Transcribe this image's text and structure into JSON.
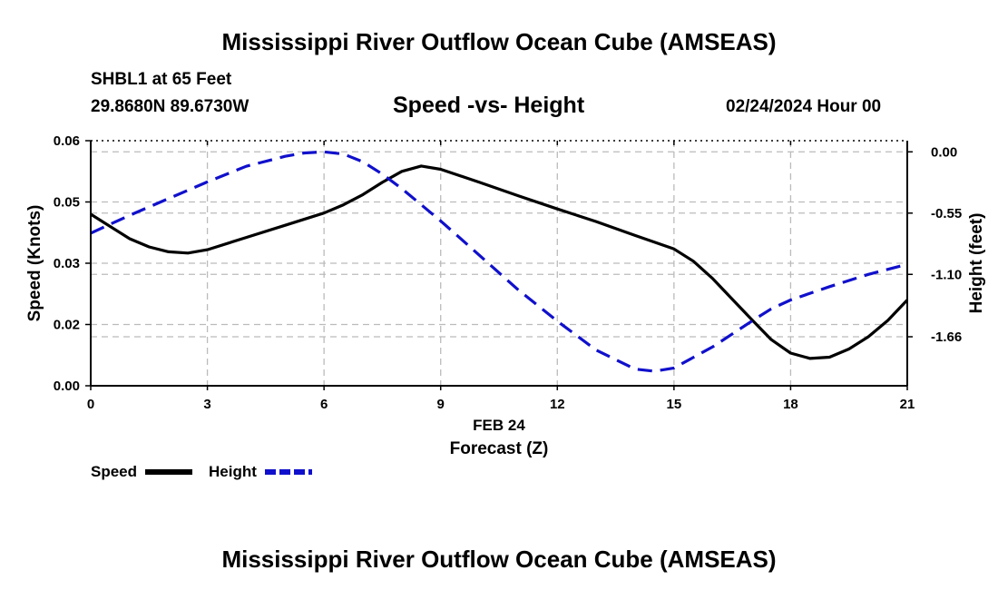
{
  "header": {
    "title": "Mississippi River Outflow Ocean Cube (AMSEAS)",
    "station": "SHBL1 at 65 Feet",
    "location": "29.8680N  89.6730W",
    "subtitle": "Speed -vs- Height",
    "datetime": "02/24/2024 Hour 00"
  },
  "footer": {
    "title": "Mississippi River Outflow Ocean Cube (AMSEAS)"
  },
  "chart_data": {
    "type": "line",
    "xlabel_date": "FEB 24",
    "xlabel": "Forecast (Z)",
    "ylabel_left": "Speed (Knots)",
    "ylabel_right": "Height (feet)",
    "x_ticks": [
      0,
      3,
      6,
      9,
      12,
      15,
      18,
      21
    ],
    "x_tick_labels": [
      "0",
      "3",
      "6",
      "9",
      "12",
      "15",
      "18",
      "21"
    ],
    "xlim": [
      0,
      21
    ],
    "y_left_ticks": [
      0.0,
      0.015,
      0.03,
      0.045,
      0.06
    ],
    "y_left_tick_labels": [
      "0.00",
      "0.02",
      "0.03",
      "0.05",
      "0.06"
    ],
    "y_left_lim": [
      0,
      0.06
    ],
    "y_right_ticks": [
      0.0,
      -0.55,
      -1.1,
      -1.66
    ],
    "y_right_tick_labels": [
      "0.00",
      "-0.55",
      "-1.10",
      "-1.66"
    ],
    "y_right_lim": [
      -2.1,
      0.1
    ],
    "grid": true,
    "legend": [
      {
        "name": "Speed",
        "color": "#000000",
        "style": "solid"
      },
      {
        "name": "Height",
        "color": "#1010cc",
        "style": "dashed"
      }
    ],
    "series": [
      {
        "name": "Speed",
        "axis": "left",
        "color": "#000000",
        "x": [
          0,
          1,
          1.5,
          2,
          2.5,
          3,
          4,
          5,
          6,
          6.5,
          7,
          7.5,
          8,
          8.5,
          9,
          10,
          11,
          12,
          13,
          14,
          15,
          15.5,
          16,
          16.5,
          17,
          17.5,
          18,
          18.5,
          19,
          19.5,
          20,
          20.5,
          21
        ],
        "values": [
          0.042,
          0.036,
          0.034,
          0.0328,
          0.0325,
          0.0333,
          0.0363,
          0.0393,
          0.0423,
          0.0443,
          0.0468,
          0.0498,
          0.0525,
          0.0538,
          0.053,
          0.0498,
          0.0465,
          0.0433,
          0.0402,
          0.0368,
          0.0335,
          0.0305,
          0.0262,
          0.0212,
          0.0162,
          0.0113,
          0.008,
          0.0067,
          0.007,
          0.009,
          0.012,
          0.016,
          0.021
        ]
      },
      {
        "name": "Height",
        "axis": "right",
        "color": "#1010cc",
        "x": [
          0,
          1,
          2,
          3,
          4,
          5,
          5.5,
          6,
          6.5,
          7,
          7.5,
          8,
          9,
          10,
          11,
          12,
          13,
          14,
          14.5,
          15,
          16,
          17,
          17.5,
          18,
          19,
          20,
          21
        ],
        "values": [
          -0.73,
          -0.57,
          -0.42,
          -0.27,
          -0.13,
          -0.04,
          -0.01,
          0.0,
          -0.02,
          -0.09,
          -0.2,
          -0.33,
          -0.62,
          -0.93,
          -1.24,
          -1.52,
          -1.78,
          -1.95,
          -1.97,
          -1.94,
          -1.75,
          -1.52,
          -1.41,
          -1.33,
          -1.21,
          -1.1,
          -1.01
        ]
      }
    ]
  }
}
